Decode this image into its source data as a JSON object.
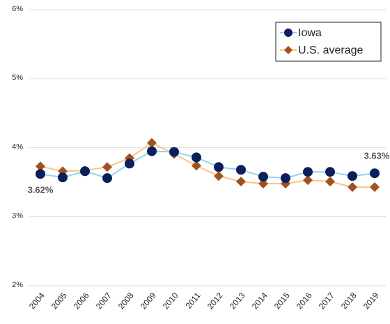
{
  "chart_data": {
    "type": "line",
    "categories": [
      "2004",
      "2005",
      "2006",
      "2007",
      "2008",
      "2009",
      "2010",
      "2011",
      "2012",
      "2013",
      "2014",
      "2015",
      "2016",
      "2017",
      "2018",
      "2019"
    ],
    "series": [
      {
        "name": "Iowa",
        "color": "#0b1f5c",
        "line_color": "#8fd3f5",
        "marker": "circle",
        "values": [
          3.62,
          3.57,
          3.66,
          3.56,
          3.77,
          3.95,
          3.94,
          3.86,
          3.72,
          3.68,
          3.58,
          3.56,
          3.65,
          3.65,
          3.59,
          3.63
        ],
        "value_labels": [
          "3.62%",
          null,
          null,
          null,
          null,
          null,
          null,
          null,
          null,
          null,
          null,
          null,
          null,
          null,
          null,
          "3.63%"
        ]
      },
      {
        "name": "U.S. average",
        "color": "#a0521e",
        "line_color": "#f5c58a",
        "marker": "diamond",
        "values": [
          3.73,
          3.66,
          3.67,
          3.72,
          3.85,
          4.07,
          3.91,
          3.74,
          3.59,
          3.51,
          3.48,
          3.48,
          3.53,
          3.51,
          3.43,
          3.43
        ]
      }
    ],
    "ylim": [
      2,
      6
    ],
    "yticks": [
      {
        "value": 2,
        "label": "2%"
      },
      {
        "value": 3,
        "label": "3%"
      },
      {
        "value": 4,
        "label": "4%"
      },
      {
        "value": 5,
        "label": "5%"
      },
      {
        "value": 6,
        "label": "6%"
      }
    ],
    "grid": true,
    "legend": "upper right"
  }
}
